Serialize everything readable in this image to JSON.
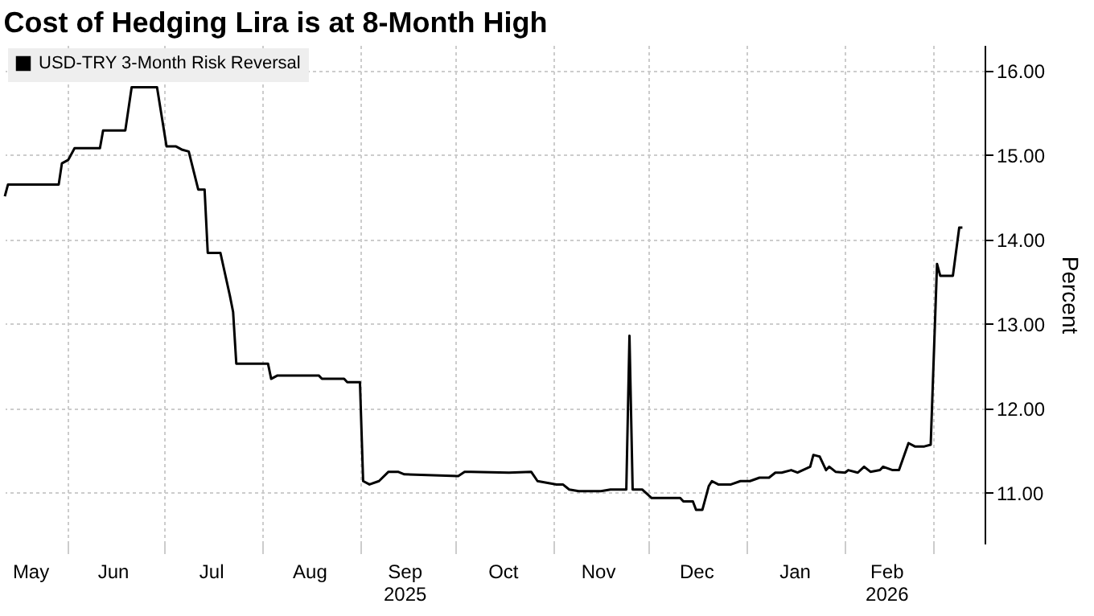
{
  "chart_data": {
    "type": "line",
    "title": "Cost of Hedging Lira is at 8-Month High",
    "ylabel": "Percent",
    "x": [
      "2025-05-12",
      "2025-05-13",
      "2025-05-29",
      "2025-05-30",
      "2025-06-01",
      "2025-06-03",
      "2025-06-11",
      "2025-06-12",
      "2025-06-19",
      "2025-06-21",
      "2025-06-29",
      "2025-07-02",
      "2025-07-05",
      "2025-07-07",
      "2025-07-09",
      "2025-07-12",
      "2025-07-14",
      "2025-07-15",
      "2025-07-19",
      "2025-07-22",
      "2025-07-23",
      "2025-07-24",
      "2025-08-03",
      "2025-08-04",
      "2025-08-06",
      "2025-08-19",
      "2025-08-20",
      "2025-08-27",
      "2025-08-28",
      "2025-09-01",
      "2025-09-02",
      "2025-09-04",
      "2025-09-07",
      "2025-09-10",
      "2025-09-13",
      "2025-09-15",
      "2025-10-02",
      "2025-10-04",
      "2025-10-06",
      "2025-10-18",
      "2025-10-25",
      "2025-10-27",
      "2025-11-02",
      "2025-11-04",
      "2025-11-06",
      "2025-11-09",
      "2025-11-16",
      "2025-11-19",
      "2025-11-24",
      "2025-11-25",
      "2025-11-26",
      "2025-11-29",
      "2025-12-02",
      "2025-12-11",
      "2025-12-12",
      "2025-12-15",
      "2025-12-16",
      "2025-12-18",
      "2025-12-20",
      "2025-12-21",
      "2025-12-23",
      "2025-12-27",
      "2025-12-30",
      "2026-01-02",
      "2026-01-05",
      "2026-01-08",
      "2026-01-10",
      "2026-01-12",
      "2026-01-15",
      "2026-01-17",
      "2026-01-21",
      "2026-01-22",
      "2026-01-24",
      "2026-01-26",
      "2026-01-27",
      "2026-01-29",
      "2026-02-01",
      "2026-02-02",
      "2026-02-05",
      "2026-02-07",
      "2026-02-09",
      "2026-02-12",
      "2026-02-13",
      "2026-02-16",
      "2026-02-18",
      "2026-02-21",
      "2026-02-23",
      "2026-02-26",
      "2026-02-28",
      "2026-03-02",
      "2026-03-03",
      "2026-03-07",
      "2026-03-09",
      "2026-03-10"
    ],
    "series": [
      {
        "name": "USD-TRY 3-Month Risk Reversal",
        "color": "#000000",
        "values": [
          14.51,
          14.65,
          14.65,
          14.9,
          14.94,
          15.08,
          15.08,
          15.29,
          15.29,
          15.8,
          15.8,
          15.1,
          15.1,
          15.06,
          15.04,
          14.59,
          14.59,
          13.84,
          13.84,
          13.33,
          13.14,
          12.53,
          12.53,
          12.35,
          12.39,
          12.39,
          12.35,
          12.35,
          12.31,
          12.31,
          11.14,
          11.1,
          11.14,
          11.25,
          11.25,
          11.22,
          11.2,
          11.25,
          11.25,
          11.24,
          11.25,
          11.14,
          11.1,
          11.1,
          11.04,
          11.02,
          11.02,
          11.04,
          11.04,
          12.86,
          11.04,
          11.04,
          10.94,
          10.94,
          10.9,
          10.9,
          10.8,
          10.8,
          11.08,
          11.14,
          11.1,
          11.1,
          11.14,
          11.14,
          11.18,
          11.18,
          11.24,
          11.24,
          11.27,
          11.24,
          11.31,
          11.45,
          11.43,
          11.27,
          11.31,
          11.25,
          11.24,
          11.27,
          11.24,
          11.31,
          11.25,
          11.27,
          11.31,
          11.27,
          11.27,
          11.59,
          11.55,
          11.55,
          11.57,
          13.71,
          13.57,
          13.57,
          14.14,
          14.14
        ]
      }
    ],
    "xlim": [
      "2025-05-12",
      "2026-03-17"
    ],
    "xticks": [
      {
        "value": "2025-05-20",
        "label": "May"
      },
      {
        "value": "2025-06-01",
        "label": null
      },
      {
        "value": "2025-06-15",
        "label": "Jun"
      },
      {
        "value": "2025-07-01",
        "label": null
      },
      {
        "value": "2025-07-16",
        "label": "Jul"
      },
      {
        "value": "2025-08-01",
        "label": null
      },
      {
        "value": "2025-08-16",
        "label": "Aug"
      },
      {
        "value": "2025-09-01",
        "label": null
      },
      {
        "value": "2025-09-15",
        "label": "Sep 2025"
      },
      {
        "value": "2025-10-01",
        "label": null
      },
      {
        "value": "2025-10-16",
        "label": "Oct"
      },
      {
        "value": "2025-11-01",
        "label": null
      },
      {
        "value": "2025-11-15",
        "label": "Nov"
      },
      {
        "value": "2025-12-01",
        "label": null
      },
      {
        "value": "2025-12-16",
        "label": "Dec"
      },
      {
        "value": "2026-01-01",
        "label": null
      },
      {
        "value": "2026-01-16",
        "label": "Jan"
      },
      {
        "value": "2026-02-01",
        "label": null
      },
      {
        "value": "2026-02-14",
        "label": "Feb 2026"
      },
      {
        "value": "2026-03-01",
        "label": null
      }
    ],
    "ylim": [
      10.4,
      16.3
    ],
    "yticks": [
      {
        "value": 11,
        "label": "11.00"
      },
      {
        "value": 12,
        "label": "12.00"
      },
      {
        "value": 13,
        "label": "13.00"
      },
      {
        "value": 14,
        "label": "14.00"
      },
      {
        "value": 15,
        "label": "15.00"
      },
      {
        "value": 16,
        "label": "16.00"
      }
    ],
    "grid": true,
    "legend": "top left",
    "line_style": "solid",
    "marker": "none"
  }
}
